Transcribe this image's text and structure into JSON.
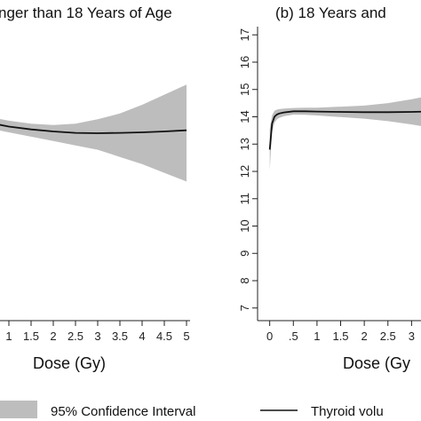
{
  "chart_data": [
    {
      "type": "line",
      "title": "nger than 18 Years of Age",
      "xlabel": "Dose (Gy)",
      "ylabel": "",
      "xlim": [
        0,
        5
      ],
      "ylim": [
        7,
        17
      ],
      "x_ticks": [
        "1",
        "1.5",
        "2",
        "2.5",
        "3",
        "3.5",
        "4",
        "4.5",
        "5"
      ],
      "y_ticks": [],
      "grid": false,
      "series": [
        {
          "name": "Thyroid volu",
          "x": [
            0,
            0.5,
            1,
            1.5,
            2,
            2.5,
            3,
            3.5,
            4,
            4.5,
            5
          ],
          "y": [
            13.9,
            13.7,
            13.55,
            13.45,
            13.38,
            13.33,
            13.32,
            13.33,
            13.35,
            13.38,
            13.42
          ],
          "lower": [
            13.7,
            13.5,
            13.35,
            13.2,
            13.05,
            12.9,
            12.75,
            12.5,
            12.25,
            11.95,
            11.65
          ],
          "upper": [
            14.1,
            13.9,
            13.75,
            13.65,
            13.6,
            13.65,
            13.8,
            14.0,
            14.3,
            14.65,
            15.0
          ]
        }
      ]
    },
    {
      "type": "line",
      "title": "(b) 18 Years and",
      "xlabel": "Dose (Gy",
      "ylabel": "",
      "xlim": [
        -0.05,
        3.5
      ],
      "ylim": [
        6.7,
        17.3
      ],
      "x_ticks": [
        "0",
        ".5",
        "1",
        "1.5",
        "2",
        "2.5",
        "3"
      ],
      "y_ticks": [
        "7",
        "8",
        "9",
        "10",
        "11",
        "12",
        "13",
        "14",
        "15",
        "16",
        "17"
      ],
      "grid": false,
      "series": [
        {
          "name": "Thyroid volu",
          "x": [
            0,
            0.05,
            0.1,
            0.15,
            0.2,
            0.3,
            0.5,
            0.75,
            1,
            1.5,
            2,
            2.5,
            3,
            3.5
          ],
          "y": [
            12.8,
            13.75,
            14.0,
            14.08,
            14.12,
            14.16,
            14.2,
            14.2,
            14.19,
            14.18,
            14.17,
            14.17,
            14.18,
            14.2
          ],
          "lower": [
            12.05,
            13.45,
            13.78,
            13.9,
            13.96,
            14.02,
            14.08,
            14.07,
            14.05,
            13.99,
            13.93,
            13.84,
            13.72,
            13.58
          ],
          "upper": [
            13.55,
            14.05,
            14.22,
            14.26,
            14.28,
            14.3,
            14.32,
            14.33,
            14.33,
            14.37,
            14.41,
            14.5,
            14.64,
            14.82
          ]
        }
      ]
    }
  ],
  "legend": {
    "ci_label": "95% Confidence Interval",
    "line_label": "Thyroid volu"
  },
  "colors": {
    "band": "#bdbdbd",
    "line": "#111111",
    "axis": "#222222"
  }
}
